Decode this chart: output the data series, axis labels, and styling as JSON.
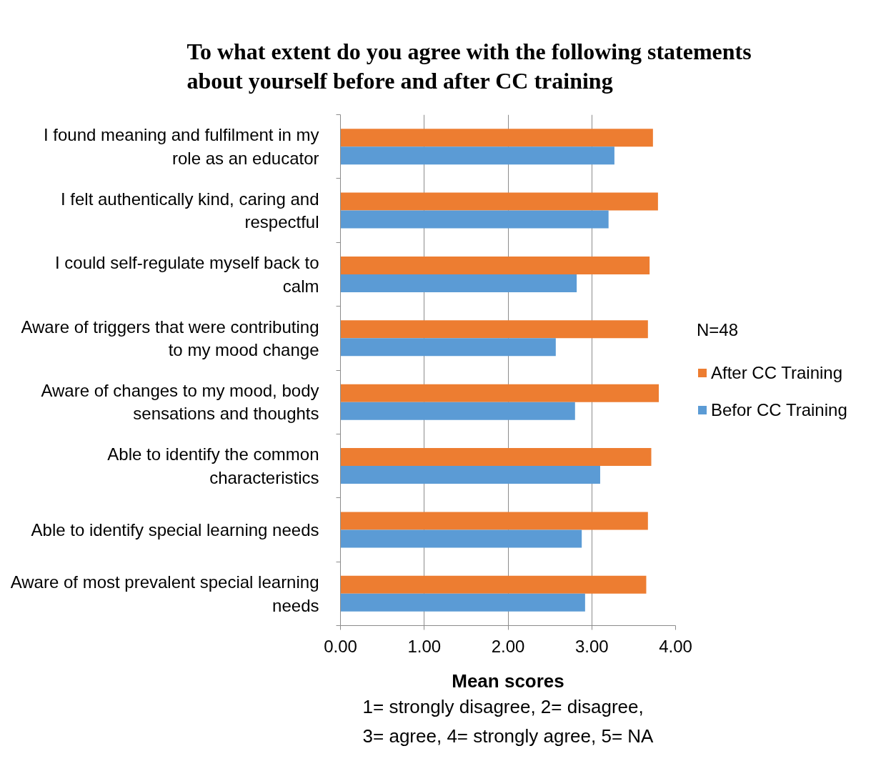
{
  "chart_data": {
    "type": "bar",
    "orientation": "horizontal",
    "title": "To what extent do you agree with the following statements about yourself before and after CC training",
    "xlabel": "Mean scores",
    "annotations": [
      "N=48",
      "1= strongly disagree, 2= disagree, 3= agree, 4= strongly agree, 5= NA"
    ],
    "categories": [
      "I found meaning and fulfilment in my role as an educator",
      "I felt authentically kind, caring and respectful",
      "I could self-regulate myself back to calm",
      "Aware of triggers that were contributing to my mood change",
      "Aware of changes to my mood, body sensations and thoughts",
      "Able to identify the common characteristics",
      "Able to identify special learning needs",
      "Aware of most prevalent special learning needs"
    ],
    "series": [
      {
        "name": "After CC Training",
        "color": "#ed7d31",
        "values": [
          3.73,
          3.79,
          3.69,
          3.67,
          3.8,
          3.71,
          3.67,
          3.65
        ]
      },
      {
        "name": "Befor CC Training",
        "color": "#5b9bd5",
        "values": [
          3.27,
          3.2,
          2.82,
          2.57,
          2.8,
          3.1,
          2.88,
          2.92
        ]
      }
    ],
    "xlim": [
      0,
      4
    ],
    "xticks": [
      {
        "value": 0,
        "label": "0.00"
      },
      {
        "value": 1,
        "label": "1.00"
      },
      {
        "value": 2,
        "label": "2.00"
      },
      {
        "value": 3,
        "label": "3.00"
      },
      {
        "value": 4,
        "label": "4.00"
      }
    ],
    "grid": "x",
    "legend": "right"
  }
}
